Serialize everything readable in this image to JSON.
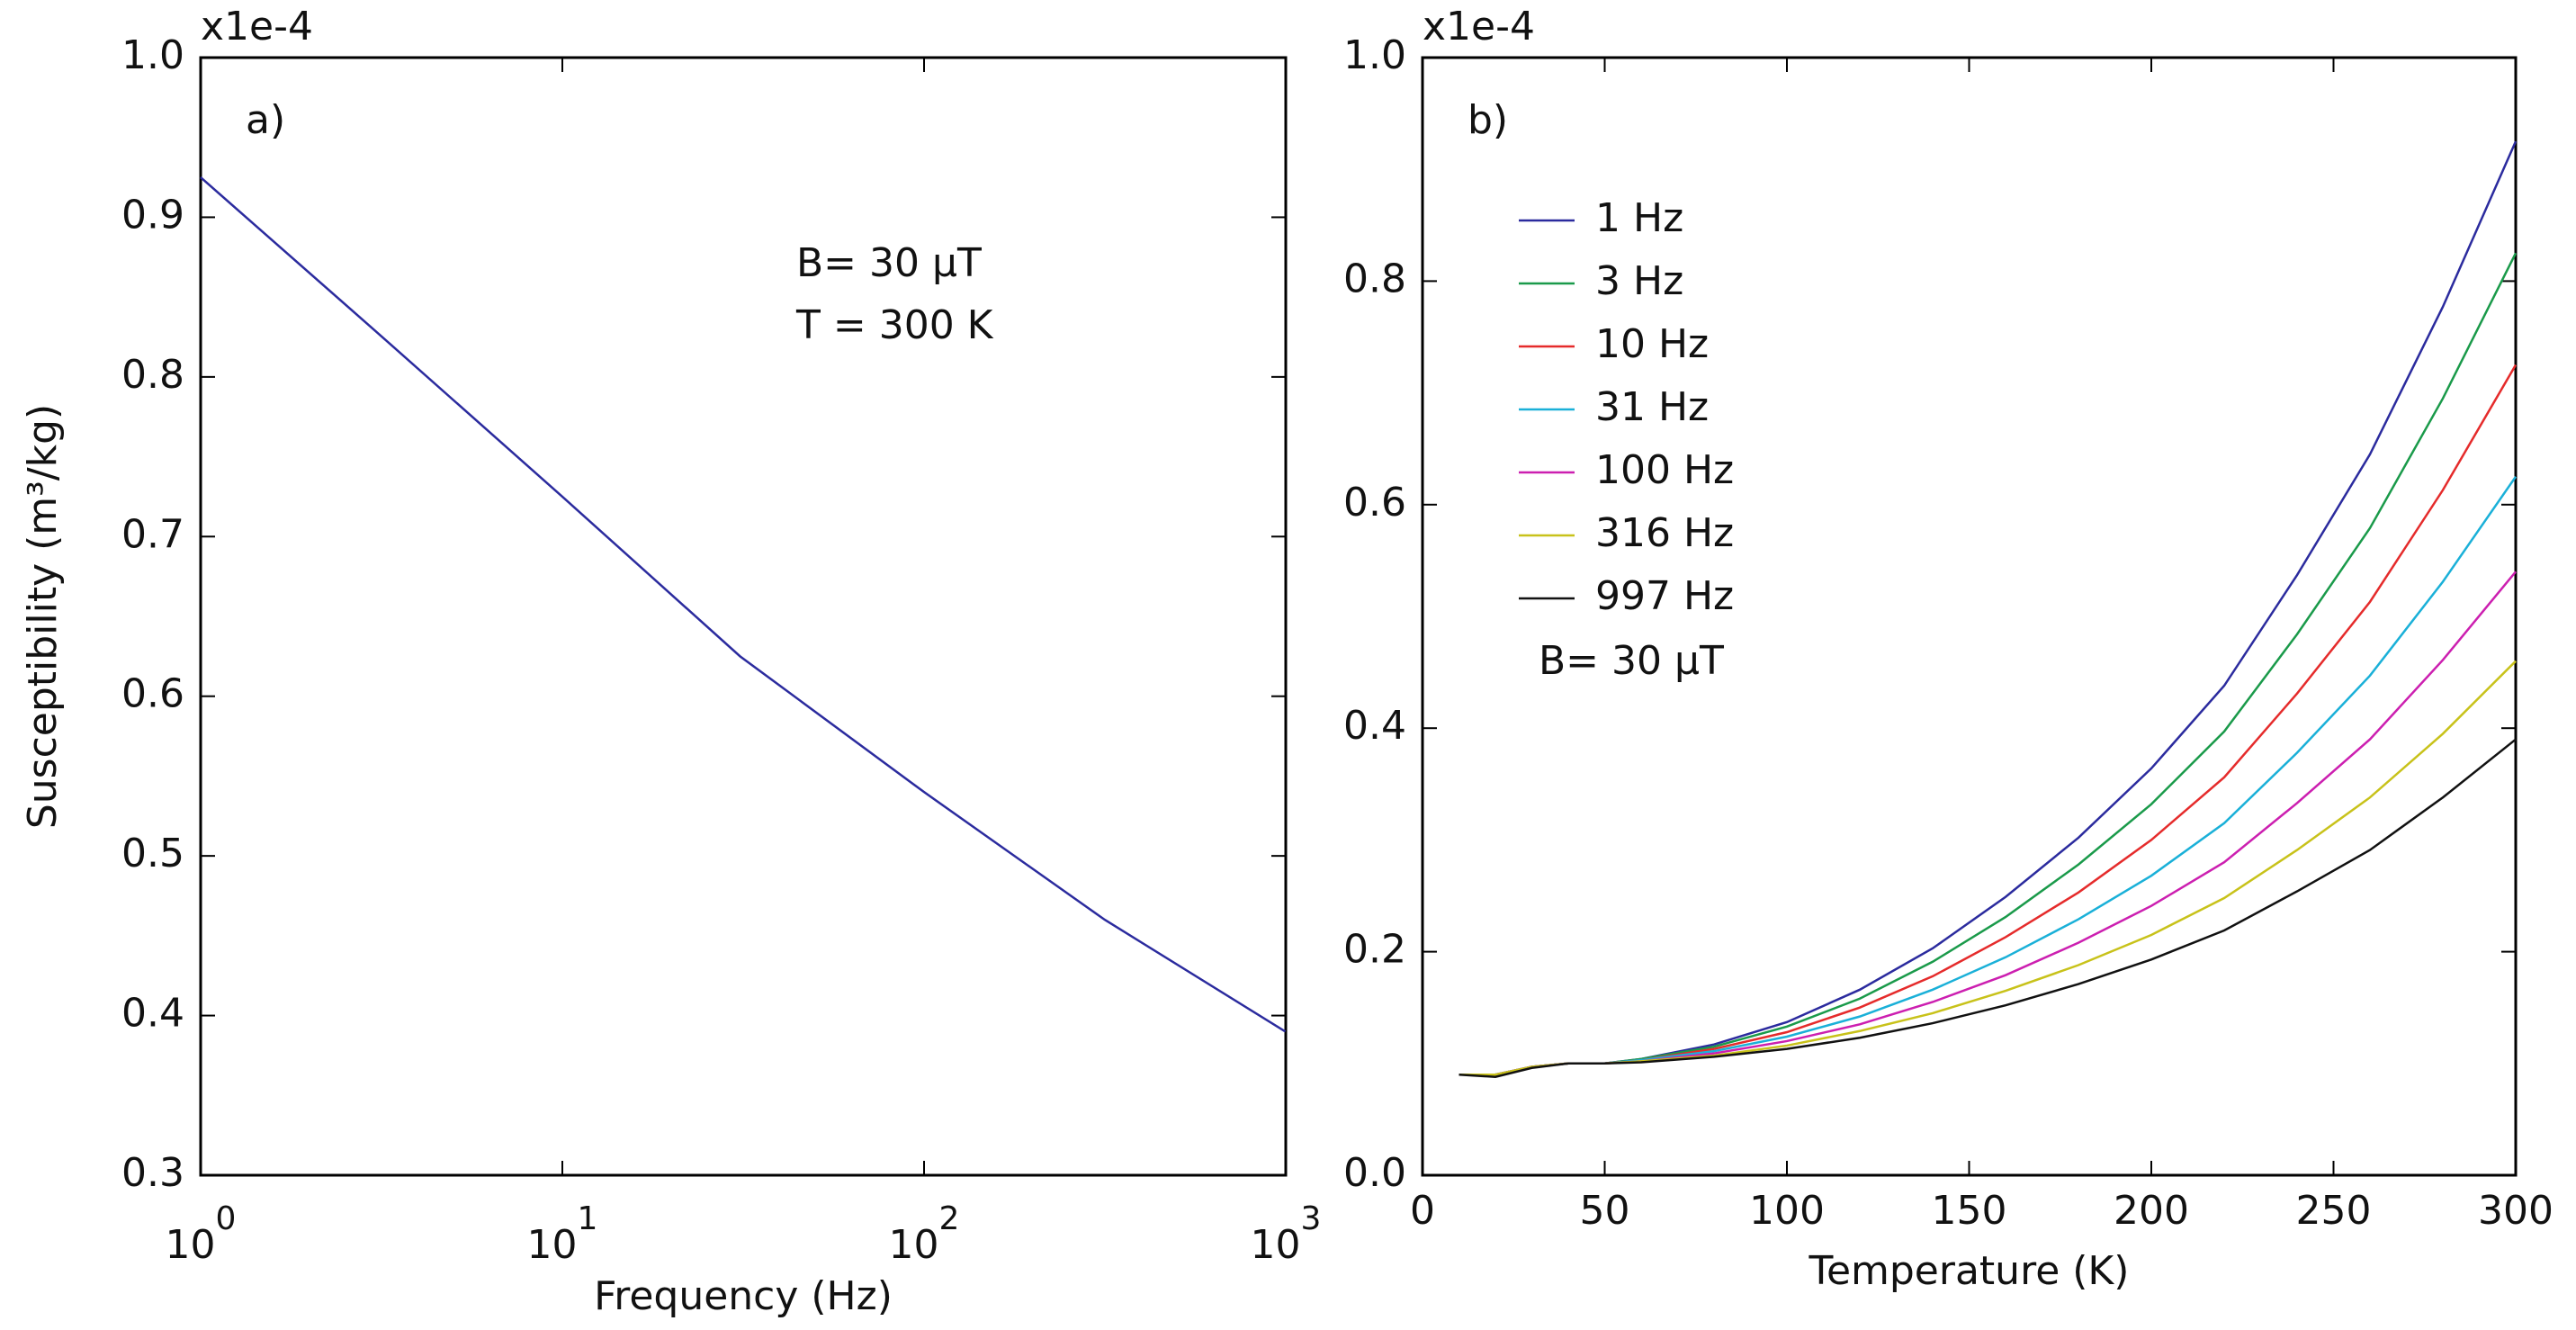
{
  "chart_data": [
    {
      "type": "line",
      "xscale": "log",
      "panel": "a)",
      "offset_text": "x1e-4",
      "xlabel": "Frequency (Hz)",
      "ylabel": "Susceptibility (m³/kg)",
      "annotations": [
        "B= 30  µT",
        "T = 300 K"
      ],
      "x": [
        1,
        3,
        10,
        31,
        100,
        316,
        997
      ],
      "values": [
        0.925,
        0.83,
        0.725,
        0.625,
        0.54,
        0.46,
        0.39
      ],
      "color": "#2b2b9e",
      "xlim": [
        1,
        1000
      ],
      "xticks": [
        {
          "value": 1,
          "label": "10",
          "exponent": "0"
        },
        {
          "value": 10,
          "label": "10",
          "exponent": "1"
        },
        {
          "value": 100,
          "label": "10",
          "exponent": "2"
        },
        {
          "value": 1000,
          "label": "10",
          "exponent": "3"
        }
      ],
      "ylim": [
        0.3,
        1.0
      ],
      "yticks": [
        0.3,
        0.4,
        0.5,
        0.6,
        0.7,
        0.8,
        0.9,
        {
          "value": 1.0,
          "label": "1.0"
        }
      ]
    },
    {
      "type": "line",
      "xscale": "linear",
      "panel": "b)",
      "offset_text": "x1e-4",
      "xlabel": "Temperature (K)",
      "annotations": [
        "B= 30  µT"
      ],
      "x": [
        10,
        20,
        30,
        40,
        50,
        60,
        80,
        100,
        120,
        140,
        160,
        180,
        200,
        220,
        240,
        260,
        280,
        300
      ],
      "series": [
        {
          "name": "1 Hz",
          "color": "#2b2b9e",
          "values": [
            0.09,
            0.09,
            0.097,
            0.1,
            0.1,
            0.104,
            0.117,
            0.137,
            0.166,
            0.203,
            0.249,
            0.302,
            0.364,
            0.438,
            0.537,
            0.645,
            0.777,
            0.925
          ]
        },
        {
          "name": "3 Hz",
          "color": "#1a9a4a",
          "values": [
            0.09,
            0.09,
            0.097,
            0.1,
            0.1,
            0.104,
            0.115,
            0.133,
            0.158,
            0.191,
            0.231,
            0.278,
            0.332,
            0.397,
            0.484,
            0.579,
            0.695,
            0.825
          ]
        },
        {
          "name": "10 Hz",
          "color": "#e52b2b",
          "values": [
            0.09,
            0.09,
            0.097,
            0.1,
            0.1,
            0.103,
            0.113,
            0.128,
            0.15,
            0.178,
            0.213,
            0.253,
            0.3,
            0.356,
            0.431,
            0.513,
            0.613,
            0.725
          ]
        },
        {
          "name": "31 Hz",
          "color": "#1ab0d8",
          "values": [
            0.09,
            0.09,
            0.097,
            0.1,
            0.1,
            0.103,
            0.111,
            0.124,
            0.142,
            0.166,
            0.195,
            0.229,
            0.268,
            0.315,
            0.378,
            0.447,
            0.531,
            0.625
          ]
        },
        {
          "name": "100 Hz",
          "color": "#cc1fb0",
          "values": [
            0.09,
            0.09,
            0.097,
            0.1,
            0.1,
            0.102,
            0.109,
            0.12,
            0.135,
            0.155,
            0.179,
            0.208,
            0.241,
            0.28,
            0.333,
            0.39,
            0.461,
            0.54
          ]
        },
        {
          "name": "316 Hz",
          "color": "#c8c21a",
          "values": [
            0.09,
            0.09,
            0.097,
            0.1,
            0.1,
            0.102,
            0.107,
            0.116,
            0.129,
            0.145,
            0.165,
            0.188,
            0.215,
            0.248,
            0.291,
            0.338,
            0.395,
            0.46
          ]
        },
        {
          "name": "997 Hz",
          "color": "#111111",
          "values": [
            0.09,
            0.088,
            0.096,
            0.1,
            0.1,
            0.101,
            0.106,
            0.113,
            0.123,
            0.136,
            0.152,
            0.171,
            0.193,
            0.219,
            0.254,
            0.291,
            0.338,
            0.39
          ]
        }
      ],
      "xlim": [
        0,
        300
      ],
      "xticks": [
        0,
        50,
        100,
        150,
        200,
        250,
        300
      ],
      "ylim": [
        0,
        1.0
      ],
      "yticks": [
        {
          "value": 0,
          "label": "0.0"
        },
        0.2,
        0.4,
        0.6,
        0.8,
        {
          "value": 1.0,
          "label": "1.0"
        }
      ]
    }
  ]
}
